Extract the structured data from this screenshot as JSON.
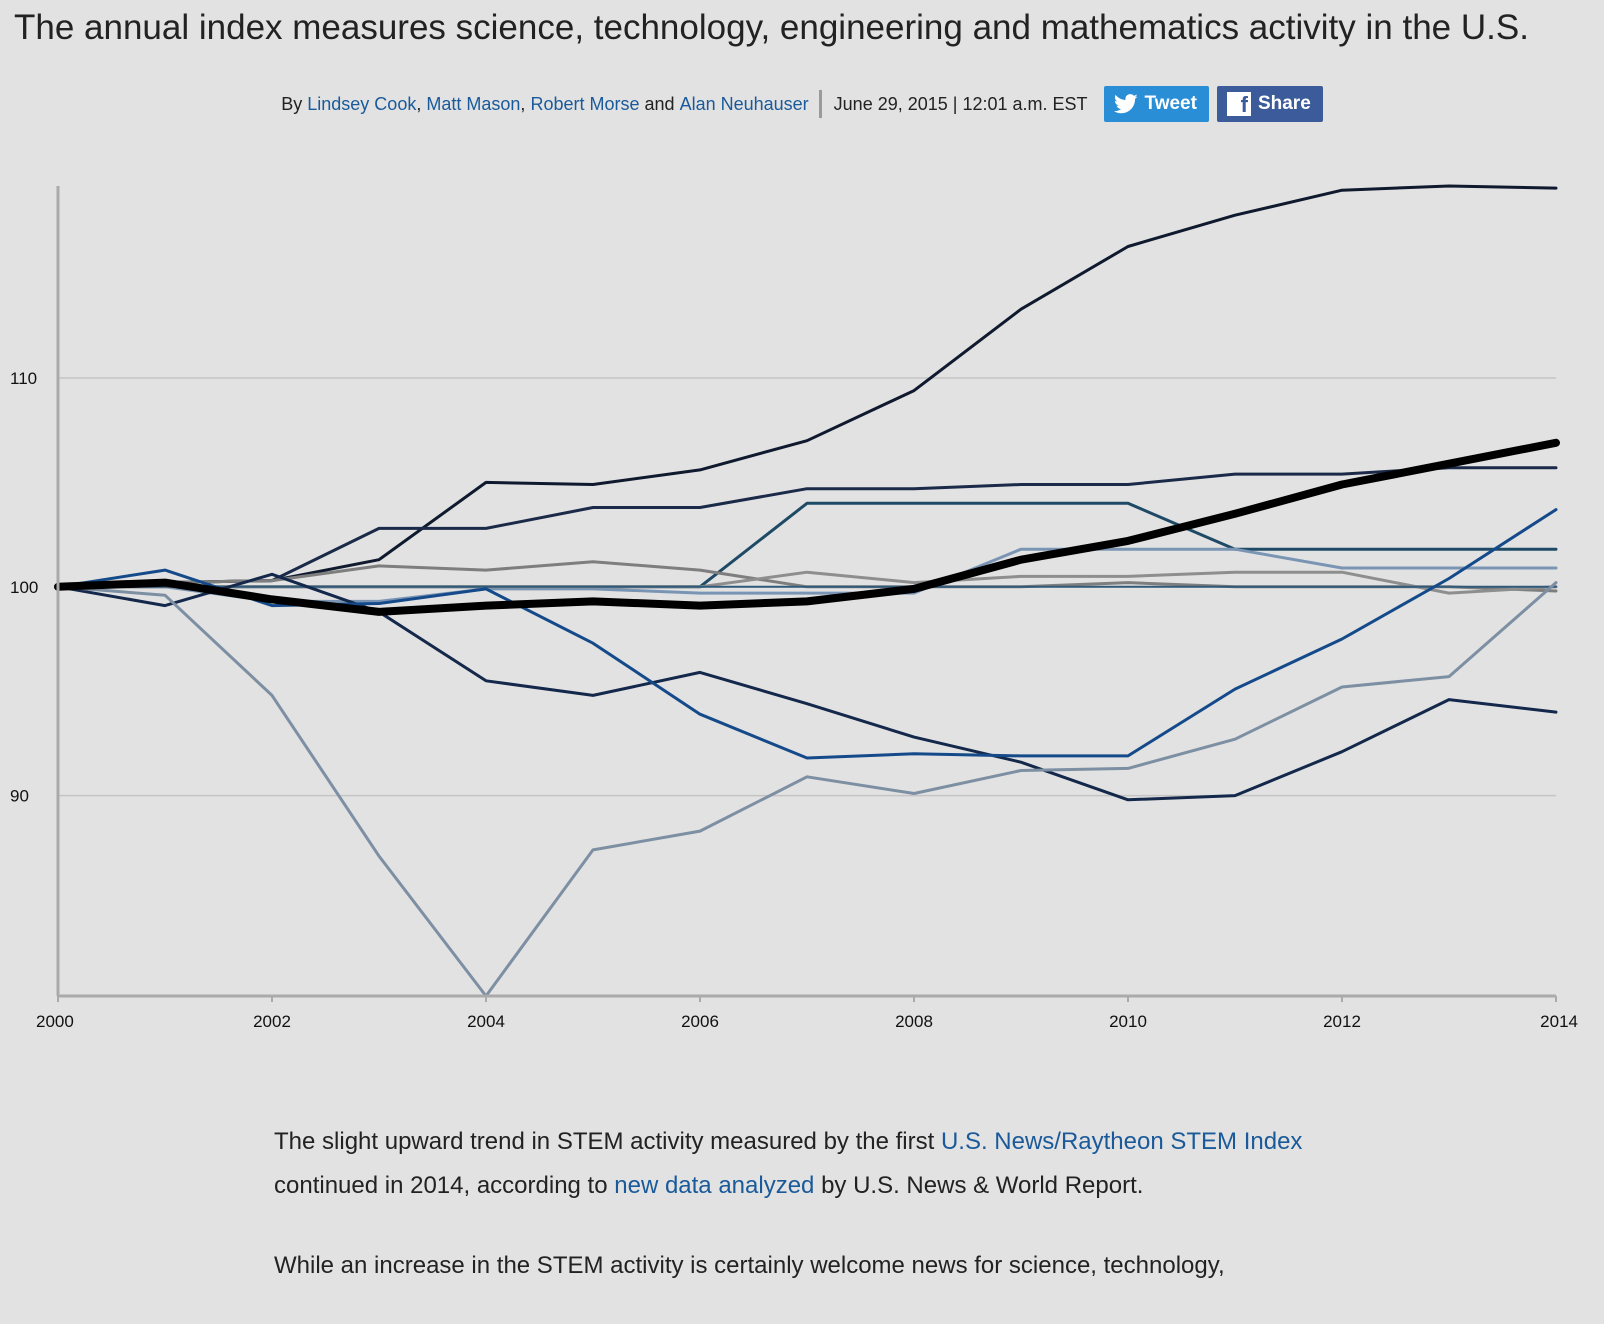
{
  "headline": "The annual index measures science, technology, engineering and mathematics activity in the U.S.",
  "byline": {
    "by": "By",
    "authors": [
      "Lindsey Cook",
      "Matt Mason",
      "Robert Morse",
      "Alan Neuhauser"
    ],
    "comma": ",",
    "and": "and",
    "date": "June 29, 2015 | 12:01 a.m. EST",
    "tweet_label": "Tweet",
    "share_label": "Share",
    "colors": {
      "link": "#1a5a9a",
      "tweet": "#2a8ed6",
      "share": "#3b5b9a"
    }
  },
  "chart_data": {
    "type": "line",
    "title": "",
    "xlabel": "",
    "ylabel": "",
    "x": [
      2000,
      2001,
      2002,
      2003,
      2004,
      2005,
      2006,
      2007,
      2008,
      2009,
      2010,
      2011,
      2012,
      2013,
      2014
    ],
    "xlim": [
      2000,
      2014
    ],
    "ylim": [
      80.4,
      119.2
    ],
    "xticks": [
      "2000",
      "2002",
      "2004",
      "2006",
      "2008",
      "2010",
      "2012",
      "2014"
    ],
    "yticks": [
      "110",
      "100",
      "90"
    ],
    "grid": true,
    "series": [
      {
        "color": "#0f1a2e",
        "width": 3,
        "values": [
          100,
          100.2,
          100.3,
          101.3,
          105.0,
          104.9,
          105.6,
          107.0,
          109.4,
          113.3,
          116.3,
          117.8,
          119.0,
          119.2,
          119.1
        ]
      },
      {
        "color": "#1a2a48",
        "width": 3,
        "values": [
          100,
          100.2,
          100.3,
          102.8,
          102.8,
          103.8,
          103.8,
          104.7,
          104.7,
          104.9,
          104.9,
          105.4,
          105.4,
          105.7,
          105.7
        ]
      },
      {
        "color": "#1e4a66",
        "width": 3,
        "values": [
          100,
          100.0,
          100.0,
          100.0,
          100.0,
          100.0,
          100.0,
          104.0,
          104.0,
          104.0,
          104.0,
          101.8,
          101.8,
          101.8,
          101.8
        ]
      },
      {
        "color": "#7a95b4",
        "width": 3,
        "values": [
          100,
          100.0,
          99.3,
          99.3,
          99.9,
          99.9,
          99.7,
          99.7,
          99.7,
          101.8,
          101.8,
          101.8,
          100.9,
          100.9,
          100.9
        ]
      },
      {
        "color": "#7e7e7e",
        "width": 3,
        "values": [
          100,
          100.2,
          100.3,
          101.0,
          100.8,
          101.2,
          100.8,
          100.0,
          100.0,
          100.0,
          100.2,
          100.0,
          100.0,
          100.0,
          99.8
        ]
      },
      {
        "color": "#8e8e8e",
        "width": 3,
        "values": [
          100,
          100.0,
          100.0,
          100.0,
          100.0,
          100.0,
          100.0,
          100.7,
          100.2,
          100.5,
          100.5,
          100.7,
          100.7,
          99.7,
          100.0
        ]
      },
      {
        "color": "#2f5a7a",
        "width": 2,
        "values": [
          100,
          100,
          100,
          100,
          100,
          100,
          100,
          100,
          100,
          100,
          100,
          100,
          100,
          100,
          100
        ]
      },
      {
        "color": "#13284a",
        "width": 3,
        "values": [
          100,
          99.1,
          100.6,
          98.8,
          95.5,
          94.8,
          95.9,
          94.4,
          92.8,
          91.6,
          89.8,
          90.0,
          92.1,
          94.6,
          94.0
        ]
      },
      {
        "color": "#154a8a",
        "width": 3,
        "values": [
          100,
          100.8,
          99.1,
          99.2,
          99.9,
          97.3,
          93.9,
          91.8,
          92.0,
          91.9,
          91.9,
          95.1,
          97.5,
          100.4,
          103.7
        ]
      },
      {
        "color": "#7d8fa2",
        "width": 3,
        "values": [
          100,
          99.6,
          94.8,
          87.1,
          80.4,
          87.4,
          88.3,
          90.9,
          90.1,
          91.2,
          91.3,
          92.7,
          95.2,
          95.7,
          100.2
        ]
      },
      {
        "color": "#000000",
        "width": 8,
        "values": [
          100,
          100.2,
          99.4,
          98.8,
          99.1,
          99.3,
          99.1,
          99.3,
          99.9,
          101.3,
          102.2,
          103.5,
          104.9,
          105.9,
          106.9
        ]
      }
    ]
  },
  "article": {
    "p1_a": "The slight upward trend in STEM activity measured by the first ",
    "p1_link1": "U.S. News/Raytheon STEM Index",
    "p1_b": " continued in 2014, according to ",
    "p1_link2": "new data analyzed",
    "p1_c": " by U.S. News & World Report.",
    "p2": "While an increase in the STEM activity is certainly welcome news for science, technology,"
  }
}
